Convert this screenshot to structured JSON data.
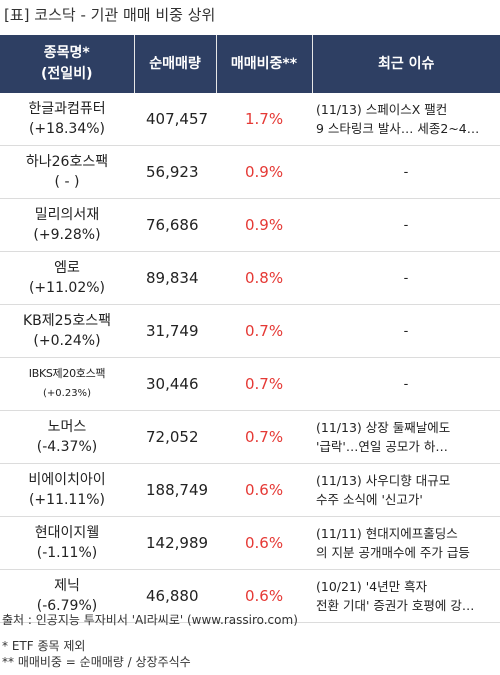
{
  "title": "[표] 코스닥 - 기관 매매 비중 상위",
  "headers": {
    "name_line1": "종목명*",
    "name_line2": "(전일비)",
    "volume": "순매매량",
    "ratio": "매매비중**",
    "issue": "최근 이슈"
  },
  "rows": [
    {
      "name": "한글과컴퓨터",
      "change": "(+18.34%)",
      "volume": "407,457",
      "ratio": "1.7%",
      "issue_line1": "(11/13) 스페이스X 팰컨",
      "issue_line2": "9 스타링크 발사… 세종2~4…"
    },
    {
      "name": "하나26호스팩",
      "change": "( - )",
      "volume": "56,923",
      "ratio": "0.9%",
      "issue_line1": "-",
      "issue_line2": ""
    },
    {
      "name": "밀리의서재",
      "change": "(+9.28%)",
      "volume": "76,686",
      "ratio": "0.9%",
      "issue_line1": "-",
      "issue_line2": ""
    },
    {
      "name": "엠로",
      "change": "(+11.02%)",
      "volume": "89,834",
      "ratio": "0.8%",
      "issue_line1": "-",
      "issue_line2": ""
    },
    {
      "name": "KB제25호스팩",
      "change": "(+0.24%)",
      "volume": "31,749",
      "ratio": "0.7%",
      "issue_line1": "-",
      "issue_line2": ""
    },
    {
      "name": "IBKS제20호스팩",
      "change": "(+0.23%)",
      "volume": "30,446",
      "ratio": "0.7%",
      "issue_line1": "-",
      "issue_line2": ""
    },
    {
      "name": "노머스",
      "change": "(-4.37%)",
      "volume": "72,052",
      "ratio": "0.7%",
      "issue_line1": "(11/13) 상장 둘째날에도",
      "issue_line2": "'급락'…연일 공모가 하…"
    },
    {
      "name": "비에이치아이",
      "change": "(+11.11%)",
      "volume": "188,749",
      "ratio": "0.6%",
      "issue_line1": "(11/13) 사우디향 대규모",
      "issue_line2": "수주 소식에 '신고가'"
    },
    {
      "name": "현대이지웰",
      "change": "(-1.11%)",
      "volume": "142,989",
      "ratio": "0.6%",
      "issue_line1": "(11/11) 현대지에프홀딩스",
      "issue_line2": "의 지분 공개매수에 주가 급등"
    },
    {
      "name": "제닉",
      "change": "(-6.79%)",
      "volume": "46,880",
      "ratio": "0.6%",
      "issue_line1": "(10/21) '4년만 흑자",
      "issue_line2": "전환 기대' 증권가 호평에 강…"
    }
  ],
  "footer": {
    "source": "출처 : 인공지능 투자비서 'AI라씨로' (www.rassiro.com)",
    "note1": "* ETF 종목 제외",
    "note2": "** 매매비중 = 순매매량 / 상장주식수"
  }
}
